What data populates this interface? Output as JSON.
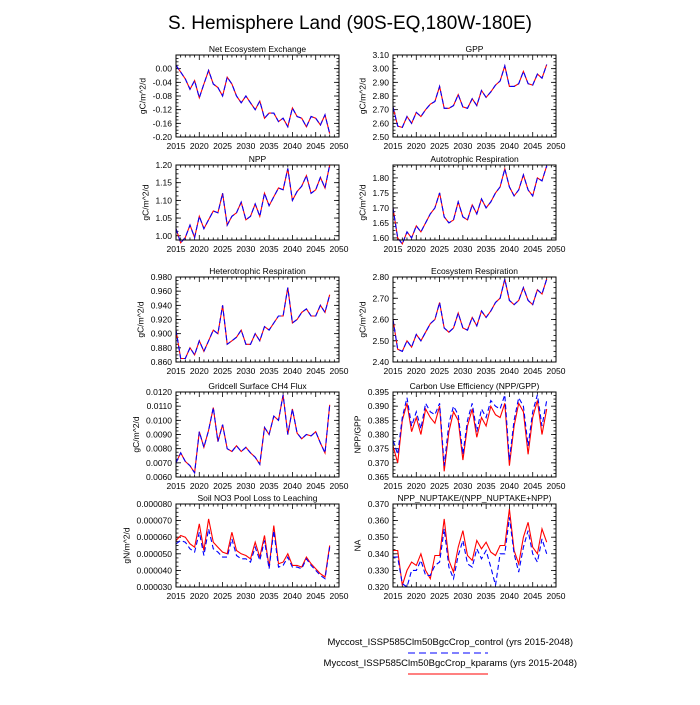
{
  "title": "S. Hemisphere Land (90S-EQ,180W-180E)",
  "colors": {
    "control": "#0000ff",
    "kparams": "#ff0000"
  },
  "legend": [
    {
      "label": "Myccost_ISSP585Clm50BgcCrop_control (yrs 2015-2048)",
      "color": "#0000ff",
      "style": "dashed"
    },
    {
      "label": "Myccost_ISSP585Clm50BgcCrop_kparams (yrs 2015-2048)",
      "color": "#ff0000",
      "style": "solid"
    }
  ],
  "chart_data": [
    {
      "type": "line",
      "title": "Net Ecosystem Exchange",
      "ylabel": "gC/m^2/d",
      "xlim": [
        2015,
        2050
      ],
      "ylim": [
        -0.2,
        0.04
      ],
      "xticks": [
        2015,
        2020,
        2025,
        2030,
        2035,
        2040,
        2045,
        2050
      ],
      "yticks": [
        -0.2,
        -0.16,
        -0.12,
        -0.08,
        -0.04,
        0.0
      ],
      "ydec": 2,
      "series": [
        {
          "name": "control",
          "values": [
            0.01,
            -0.01,
            -0.03,
            -0.06,
            -0.035,
            -0.085,
            -0.045,
            -0.005,
            -0.045,
            -0.055,
            -0.08,
            -0.025,
            -0.045,
            -0.08,
            -0.1,
            -0.08,
            -0.1,
            -0.12,
            -0.095,
            -0.145,
            -0.13,
            -0.13,
            -0.155,
            -0.145,
            -0.17,
            -0.115,
            -0.14,
            -0.145,
            -0.17,
            -0.14,
            -0.145,
            -0.165,
            -0.135,
            -0.19
          ]
        },
        {
          "name": "kparams",
          "values": [
            0.01,
            -0.01,
            -0.03,
            -0.06,
            -0.035,
            -0.085,
            -0.045,
            -0.005,
            -0.045,
            -0.055,
            -0.08,
            -0.025,
            -0.045,
            -0.08,
            -0.1,
            -0.08,
            -0.1,
            -0.12,
            -0.095,
            -0.145,
            -0.13,
            -0.13,
            -0.155,
            -0.145,
            -0.17,
            -0.115,
            -0.14,
            -0.145,
            -0.17,
            -0.14,
            -0.145,
            -0.165,
            -0.135,
            -0.19
          ]
        }
      ]
    },
    {
      "type": "line",
      "title": "GPP",
      "ylabel": "gC/m^2/d",
      "xlim": [
        2015,
        2050
      ],
      "ylim": [
        2.5,
        3.1
      ],
      "xticks": [
        2015,
        2020,
        2025,
        2030,
        2035,
        2040,
        2045,
        2050
      ],
      "yticks": [
        2.5,
        2.6,
        2.7,
        2.8,
        2.9,
        3.0,
        3.1
      ],
      "ydec": 2,
      "series": [
        {
          "name": "control",
          "values": [
            2.72,
            2.58,
            2.57,
            2.65,
            2.6,
            2.68,
            2.65,
            2.7,
            2.74,
            2.76,
            2.87,
            2.71,
            2.71,
            2.73,
            2.81,
            2.72,
            2.71,
            2.78,
            2.73,
            2.84,
            2.79,
            2.83,
            2.88,
            2.91,
            3.02,
            2.87,
            2.87,
            2.89,
            2.98,
            2.89,
            2.88,
            2.96,
            2.93,
            3.03
          ]
        },
        {
          "name": "kparams",
          "values": [
            2.72,
            2.58,
            2.57,
            2.65,
            2.6,
            2.68,
            2.65,
            2.7,
            2.74,
            2.76,
            2.87,
            2.71,
            2.71,
            2.73,
            2.81,
            2.72,
            2.71,
            2.78,
            2.73,
            2.84,
            2.79,
            2.83,
            2.88,
            2.91,
            3.02,
            2.87,
            2.87,
            2.89,
            2.98,
            2.89,
            2.88,
            2.96,
            2.93,
            3.03
          ]
        }
      ]
    },
    {
      "type": "line",
      "title": "NPP",
      "ylabel": "gC/m^2/d",
      "xlim": [
        2015,
        2050
      ],
      "ylim": [
        0.988,
        1.2
      ],
      "xticks": [
        2015,
        2020,
        2025,
        2030,
        2035,
        2040,
        2045,
        2050
      ],
      "yticks": [
        1.0,
        1.05,
        1.1,
        1.15,
        1.2
      ],
      "ydec": 2,
      "series": [
        {
          "name": "control",
          "values": [
            1.02,
            0.98,
            0.995,
            1.03,
            0.995,
            1.055,
            1.02,
            1.045,
            1.07,
            1.065,
            1.12,
            1.03,
            1.055,
            1.065,
            1.095,
            1.045,
            1.055,
            1.09,
            1.055,
            1.12,
            1.085,
            1.11,
            1.135,
            1.13,
            1.19,
            1.1,
            1.125,
            1.14,
            1.17,
            1.12,
            1.13,
            1.165,
            1.135,
            1.2
          ]
        },
        {
          "name": "kparams",
          "values": [
            1.02,
            0.98,
            0.995,
            1.03,
            0.995,
            1.055,
            1.02,
            1.045,
            1.07,
            1.065,
            1.12,
            1.03,
            1.055,
            1.065,
            1.095,
            1.045,
            1.055,
            1.09,
            1.055,
            1.12,
            1.085,
            1.11,
            1.135,
            1.13,
            1.19,
            1.1,
            1.125,
            1.14,
            1.17,
            1.12,
            1.13,
            1.165,
            1.135,
            1.2
          ]
        }
      ]
    },
    {
      "type": "line",
      "title": "Autotrophic Respiration",
      "ylabel": "gC/m^2/d",
      "xlim": [
        2015,
        2050
      ],
      "ylim": [
        1.593,
        1.843
      ],
      "xticks": [
        2015,
        2020,
        2025,
        2030,
        2035,
        2040,
        2045,
        2050
      ],
      "yticks": [
        1.6,
        1.65,
        1.7,
        1.75,
        1.8
      ],
      "ydec": 2,
      "series": [
        {
          "name": "control",
          "values": [
            1.7,
            1.6,
            1.58,
            1.62,
            1.6,
            1.64,
            1.62,
            1.65,
            1.68,
            1.7,
            1.75,
            1.67,
            1.65,
            1.66,
            1.72,
            1.67,
            1.66,
            1.71,
            1.68,
            1.73,
            1.7,
            1.72,
            1.75,
            1.77,
            1.83,
            1.77,
            1.74,
            1.76,
            1.81,
            1.76,
            1.74,
            1.8,
            1.79,
            1.84
          ]
        },
        {
          "name": "kparams",
          "values": [
            1.7,
            1.6,
            1.58,
            1.62,
            1.6,
            1.64,
            1.62,
            1.65,
            1.68,
            1.7,
            1.75,
            1.67,
            1.65,
            1.66,
            1.72,
            1.67,
            1.66,
            1.71,
            1.68,
            1.73,
            1.7,
            1.72,
            1.75,
            1.77,
            1.83,
            1.77,
            1.74,
            1.76,
            1.81,
            1.76,
            1.74,
            1.8,
            1.79,
            1.84
          ]
        }
      ]
    },
    {
      "type": "line",
      "title": "Heterotrophic Respiration",
      "ylabel": "gC/m^2/d",
      "xlim": [
        2015,
        2050
      ],
      "ylim": [
        0.86,
        0.98
      ],
      "xticks": [
        2015,
        2020,
        2025,
        2030,
        2035,
        2040,
        2045,
        2050
      ],
      "yticks": [
        0.86,
        0.88,
        0.9,
        0.92,
        0.94,
        0.96,
        0.98
      ],
      "ydec": 3,
      "series": [
        {
          "name": "control",
          "values": [
            0.905,
            0.865,
            0.865,
            0.88,
            0.87,
            0.89,
            0.875,
            0.89,
            0.905,
            0.9,
            0.94,
            0.885,
            0.89,
            0.895,
            0.905,
            0.885,
            0.885,
            0.9,
            0.89,
            0.91,
            0.905,
            0.915,
            0.925,
            0.925,
            0.965,
            0.915,
            0.92,
            0.93,
            0.935,
            0.925,
            0.925,
            0.94,
            0.93,
            0.955
          ]
        },
        {
          "name": "kparams",
          "values": [
            0.905,
            0.865,
            0.865,
            0.88,
            0.87,
            0.89,
            0.875,
            0.89,
            0.905,
            0.9,
            0.94,
            0.885,
            0.89,
            0.895,
            0.905,
            0.885,
            0.885,
            0.9,
            0.89,
            0.91,
            0.905,
            0.915,
            0.925,
            0.925,
            0.965,
            0.915,
            0.92,
            0.93,
            0.935,
            0.925,
            0.925,
            0.94,
            0.93,
            0.955
          ]
        }
      ]
    },
    {
      "type": "line",
      "title": "Ecosystem Respiration",
      "ylabel": "gC/m^2/d",
      "xlim": [
        2015,
        2050
      ],
      "ylim": [
        2.4,
        2.8
      ],
      "xticks": [
        2015,
        2020,
        2025,
        2030,
        2035,
        2040,
        2045,
        2050
      ],
      "yticks": [
        2.4,
        2.5,
        2.6,
        2.7,
        2.8
      ],
      "ydec": 2,
      "series": [
        {
          "name": "control",
          "values": [
            2.6,
            2.46,
            2.45,
            2.5,
            2.47,
            2.53,
            2.5,
            2.54,
            2.58,
            2.6,
            2.68,
            2.56,
            2.54,
            2.56,
            2.63,
            2.56,
            2.55,
            2.61,
            2.57,
            2.64,
            2.61,
            2.64,
            2.68,
            2.7,
            2.79,
            2.69,
            2.67,
            2.69,
            2.75,
            2.69,
            2.67,
            2.74,
            2.72,
            2.79
          ]
        },
        {
          "name": "kparams",
          "values": [
            2.6,
            2.46,
            2.45,
            2.5,
            2.47,
            2.53,
            2.5,
            2.54,
            2.58,
            2.6,
            2.68,
            2.56,
            2.54,
            2.56,
            2.63,
            2.56,
            2.55,
            2.61,
            2.57,
            2.64,
            2.61,
            2.64,
            2.68,
            2.7,
            2.79,
            2.69,
            2.67,
            2.69,
            2.75,
            2.69,
            2.67,
            2.74,
            2.72,
            2.79
          ]
        }
      ]
    },
    {
      "type": "line",
      "title": "Gridcell Surface CH4 Flux",
      "ylabel": "gC/m^2/d",
      "xlim": [
        2015,
        2050
      ],
      "ylim": [
        0.006,
        0.012
      ],
      "xticks": [
        2015,
        2020,
        2025,
        2030,
        2035,
        2040,
        2045,
        2050
      ],
      "yticks": [
        0.006,
        0.007,
        0.008,
        0.009,
        0.01,
        0.011,
        0.012
      ],
      "ydec": 4,
      "series": [
        {
          "name": "control",
          "values": [
            0.007,
            0.0077,
            0.0071,
            0.0068,
            0.0063,
            0.0092,
            0.0081,
            0.0093,
            0.0109,
            0.0085,
            0.0097,
            0.008,
            0.0078,
            0.0082,
            0.0078,
            0.0081,
            0.0077,
            0.0074,
            0.0069,
            0.0095,
            0.009,
            0.0103,
            0.01,
            0.0118,
            0.009,
            0.0108,
            0.0091,
            0.0087,
            0.009,
            0.0089,
            0.0092,
            0.0084,
            0.0077,
            0.0111
          ]
        },
        {
          "name": "kparams",
          "values": [
            0.007,
            0.0077,
            0.0071,
            0.0068,
            0.0063,
            0.0092,
            0.0081,
            0.0093,
            0.0109,
            0.0085,
            0.0097,
            0.008,
            0.0078,
            0.0082,
            0.0078,
            0.0081,
            0.0077,
            0.0074,
            0.0069,
            0.0095,
            0.009,
            0.0103,
            0.01,
            0.0118,
            0.009,
            0.0108,
            0.0091,
            0.0087,
            0.009,
            0.0089,
            0.0092,
            0.0084,
            0.0077,
            0.0111
          ]
        }
      ]
    },
    {
      "type": "line",
      "title": "Carbon Use Efficiency (NPP/GPP)",
      "ylabel": "NPP/GPP",
      "xlim": [
        2015,
        2050
      ],
      "ylim": [
        0.365,
        0.395
      ],
      "xticks": [
        2015,
        2020,
        2025,
        2030,
        2035,
        2040,
        2045,
        2050
      ],
      "yticks": [
        0.365,
        0.37,
        0.375,
        0.38,
        0.385,
        0.39,
        0.395
      ],
      "ydec": 3,
      "series": [
        {
          "name": "control",
          "values": [
            0.378,
            0.373,
            0.386,
            0.393,
            0.383,
            0.388,
            0.382,
            0.391,
            0.388,
            0.387,
            0.391,
            0.369,
            0.384,
            0.39,
            0.387,
            0.373,
            0.385,
            0.391,
            0.381,
            0.389,
            0.386,
            0.392,
            0.39,
            0.389,
            0.394,
            0.371,
            0.385,
            0.393,
            0.39,
            0.376,
            0.388,
            0.394,
            0.383,
            0.392
          ]
        },
        {
          "name": "kparams",
          "values": [
            0.376,
            0.37,
            0.385,
            0.391,
            0.381,
            0.386,
            0.38,
            0.389,
            0.386,
            0.384,
            0.39,
            0.367,
            0.381,
            0.388,
            0.385,
            0.371,
            0.383,
            0.389,
            0.379,
            0.386,
            0.383,
            0.39,
            0.387,
            0.386,
            0.391,
            0.369,
            0.383,
            0.391,
            0.388,
            0.373,
            0.386,
            0.392,
            0.38,
            0.389
          ]
        }
      ]
    },
    {
      "type": "line",
      "title": "Soil NO3 Pool Loss to Leaching",
      "ylabel": "gN/m^2/d",
      "xlim": [
        2015,
        2050
      ],
      "ylim": [
        3e-05,
        8e-05
      ],
      "xticks": [
        2015,
        2020,
        2025,
        2030,
        2035,
        2040,
        2045,
        2050
      ],
      "yticks": [
        3e-05,
        4e-05,
        5e-05,
        6e-05,
        7e-05,
        8e-05
      ],
      "ydec": 6,
      "series": [
        {
          "name": "control",
          "values": [
            5.6e-05,
            5.8e-05,
            5.7e-05,
            5.3e-05,
            5.1e-05,
            6.3e-05,
            4.9e-05,
            6.5e-05,
            5.3e-05,
            5.1e-05,
            4.8e-05,
            4.8e-05,
            5.9e-05,
            4.9e-05,
            4.7e-05,
            4.7e-05,
            4.5e-05,
            5.4e-05,
            4.6e-05,
            5.8e-05,
            4.1e-05,
            6.4e-05,
            4.2e-05,
            4.3e-05,
            4.8e-05,
            4.2e-05,
            4.2e-05,
            4.1e-05,
            4.7e-05,
            4.3e-05,
            4e-05,
            3.7e-05,
            3.5e-05,
            5.4e-05
          ]
        },
        {
          "name": "kparams",
          "values": [
            5.8e-05,
            6.1e-05,
            6e-05,
            5.6e-05,
            5.4e-05,
            6.8e-05,
            5.2e-05,
            7.1e-05,
            5.7e-05,
            5.4e-05,
            5.1e-05,
            5e-05,
            6.3e-05,
            5.2e-05,
            5e-05,
            4.9e-05,
            4.7e-05,
            5.7e-05,
            4.8e-05,
            6.1e-05,
            4.2e-05,
            6.7e-05,
            4.4e-05,
            4.5e-05,
            5e-05,
            4.3e-05,
            4.3e-05,
            4.2e-05,
            4.8e-05,
            4.4e-05,
            4.1e-05,
            3.8e-05,
            3.6e-05,
            5.5e-05
          ]
        }
      ]
    },
    {
      "type": "line",
      "title": "NPP_NUPTAKE/(NPP_NUPTAKE+NPP)",
      "ylabel": "NA",
      "xlim": [
        2015,
        2050
      ],
      "ylim": [
        0.32,
        0.37
      ],
      "xticks": [
        2015,
        2020,
        2025,
        2030,
        2035,
        2040,
        2045,
        2050
      ],
      "yticks": [
        0.32,
        0.33,
        0.34,
        0.35,
        0.36,
        0.37
      ],
      "ydec": 3,
      "series": [
        {
          "name": "control",
          "values": [
            0.338,
            0.338,
            0.322,
            0.32,
            0.33,
            0.33,
            0.336,
            0.327,
            0.327,
            0.333,
            0.335,
            0.355,
            0.332,
            0.325,
            0.339,
            0.348,
            0.334,
            0.332,
            0.343,
            0.337,
            0.342,
            0.332,
            0.321,
            0.34,
            0.34,
            0.362,
            0.34,
            0.329,
            0.344,
            0.354,
            0.34,
            0.335,
            0.349,
            0.34
          ]
        },
        {
          "name": "kparams",
          "values": [
            0.342,
            0.342,
            0.321,
            0.33,
            0.335,
            0.333,
            0.34,
            0.33,
            0.325,
            0.339,
            0.339,
            0.361,
            0.336,
            0.329,
            0.344,
            0.354,
            0.339,
            0.336,
            0.348,
            0.343,
            0.347,
            0.341,
            0.339,
            0.345,
            0.345,
            0.367,
            0.342,
            0.334,
            0.35,
            0.359,
            0.344,
            0.34,
            0.355,
            0.347
          ]
        }
      ]
    }
  ]
}
